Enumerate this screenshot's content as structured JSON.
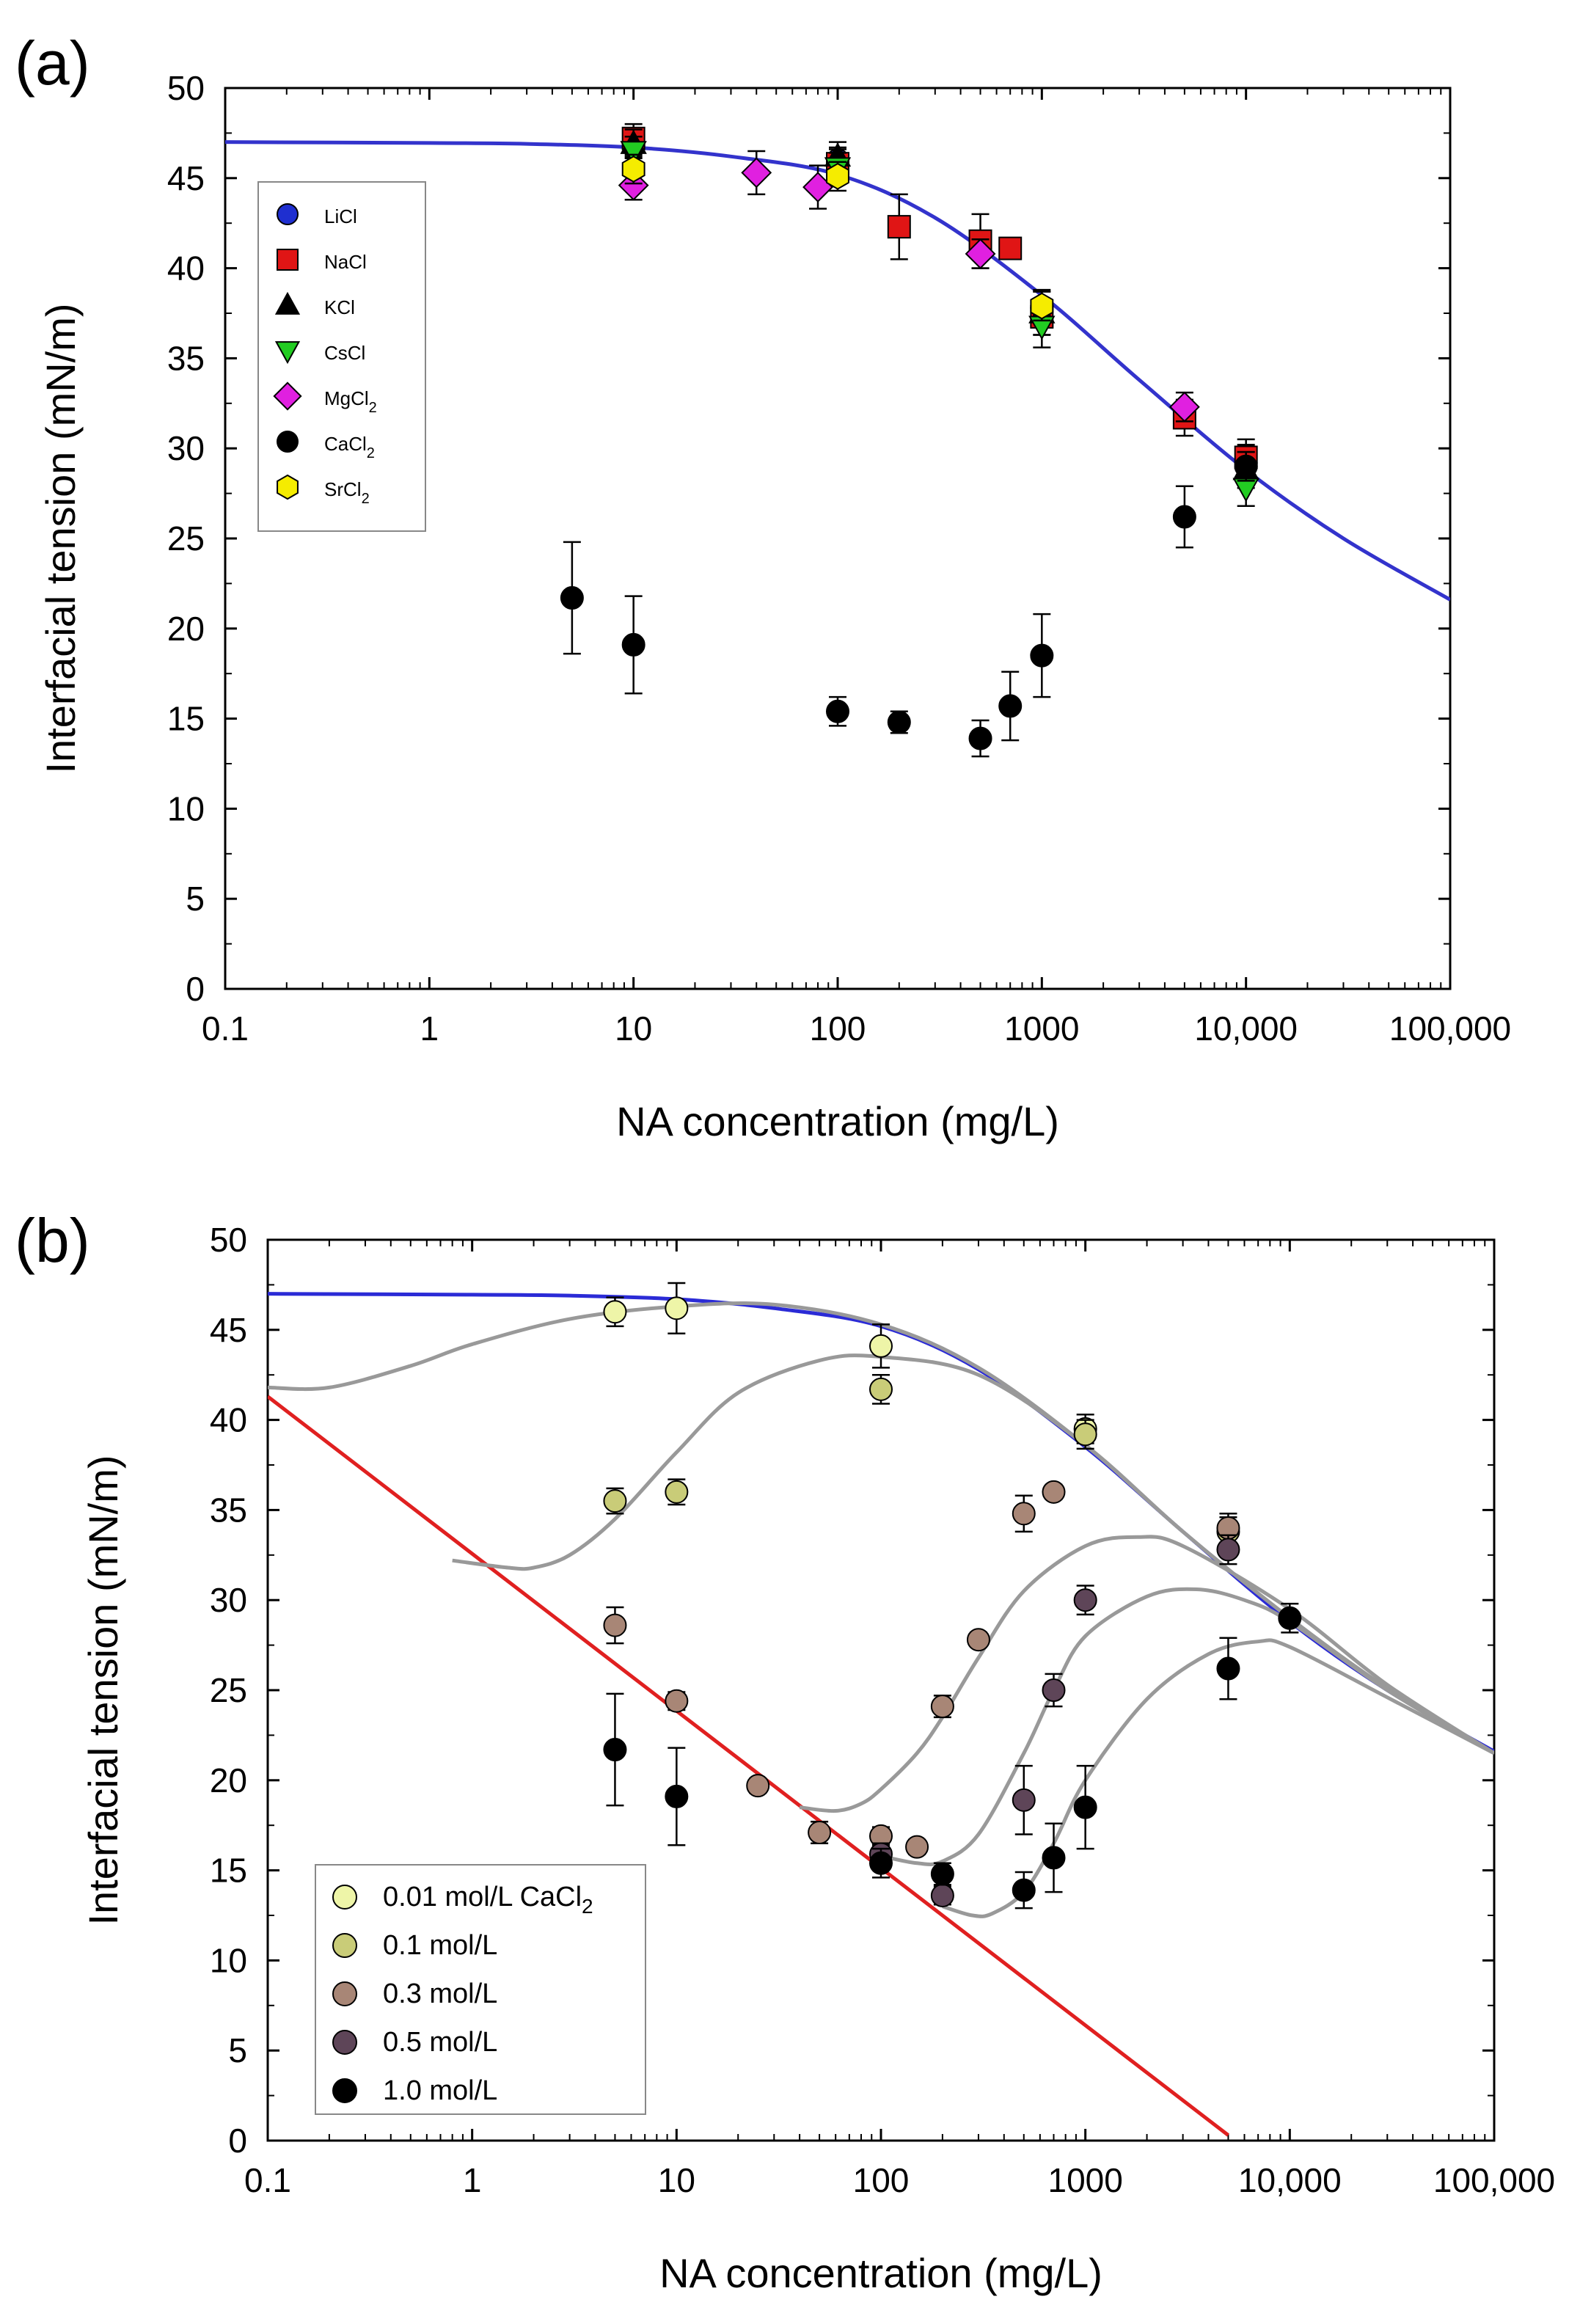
{
  "chart_data": [
    {
      "panel": "(a)",
      "type": "scatter",
      "title": "",
      "xlabel": "NA concentration (mg/L)",
      "ylabel": "Interfacial tension (mN/m)",
      "xscale": "log",
      "xlim": [
        0.1,
        100000
      ],
      "ylim": [
        0,
        50
      ],
      "x_tick_labels": [
        "0.1",
        "1",
        "10",
        "100",
        "1000",
        "10,000",
        "100,000"
      ],
      "x_tick_values": [
        0.1,
        1,
        10,
        100,
        1000,
        10000,
        100000
      ],
      "y_ticks": [
        0,
        5,
        10,
        15,
        20,
        25,
        30,
        35,
        40,
        45,
        50
      ],
      "legend_position": "upper-left",
      "series": [
        {
          "name": "LiCl",
          "name_sub": "",
          "marker": "circle",
          "color": "#1f2fd0",
          "points": [
            [
              10,
              46.8,
              0.6
            ],
            [
              100,
              46.0,
              0.7
            ],
            [
              1000,
              37.8,
              1.0
            ],
            [
              10000,
              29.2,
              1.0
            ]
          ]
        },
        {
          "name": "NaCl",
          "name_sub": "",
          "marker": "square",
          "color": "#e01515",
          "points": [
            [
              10,
              47.2,
              0.8
            ],
            [
              100,
              45.8,
              0.8
            ],
            [
              200,
              42.3,
              1.8
            ],
            [
              500,
              41.5,
              1.5
            ],
            [
              700,
              41.1,
              0.5
            ],
            [
              1000,
              37.3,
              1.0
            ],
            [
              5000,
              31.7,
              1.0
            ],
            [
              10000,
              29.5,
              1.0
            ]
          ]
        },
        {
          "name": "KCl",
          "name_sub": "",
          "marker": "triangle",
          "color": "#000000",
          "points": [
            [
              10,
              46.9,
              0.8
            ],
            [
              100,
              46.2,
              0.8
            ],
            [
              1000,
              37.5,
              1.2
            ],
            [
              10000,
              28.8,
              1.0
            ]
          ]
        },
        {
          "name": "CsCl",
          "name_sub": "",
          "marker": "triangle-down",
          "color": "#22cc22",
          "points": [
            [
              10,
              46.5,
              0.8
            ],
            [
              100,
              45.6,
              0.8
            ],
            [
              1000,
              36.8,
              1.2
            ],
            [
              10000,
              27.8,
              1.0
            ]
          ]
        },
        {
          "name": "MgCl",
          "name_sub": "2",
          "marker": "diamond",
          "color": "#e020e0",
          "points": [
            [
              10,
              44.6,
              0.8
            ],
            [
              40,
              45.3,
              1.2
            ],
            [
              80,
              44.5,
              1.2
            ],
            [
              500,
              40.8,
              0.8
            ],
            [
              5000,
              32.3,
              0.8
            ]
          ]
        },
        {
          "name": "CaCl",
          "name_sub": "2",
          "marker": "circle",
          "color": "#000000",
          "points": [
            [
              5,
              21.7,
              3.1
            ],
            [
              10,
              19.1,
              2.7
            ],
            [
              100,
              15.4,
              0.8
            ],
            [
              200,
              14.8,
              0.6
            ],
            [
              500,
              13.9,
              1.0
            ],
            [
              700,
              15.7,
              1.9
            ],
            [
              1000,
              18.5,
              2.3
            ],
            [
              5000,
              26.2,
              1.7
            ],
            [
              10000,
              29.0,
              0.8
            ]
          ]
        },
        {
          "name": "SrCl",
          "name_sub": "2",
          "marker": "hexagon",
          "color": "#f5ec00",
          "points": [
            [
              10,
              45.5,
              0.8
            ],
            [
              100,
              45.1,
              0.8
            ],
            [
              1000,
              37.9,
              0.8
            ]
          ]
        }
      ],
      "curves": [
        {
          "name": "fit",
          "color": "#3333cc",
          "points": [
            [
              0.1,
              47.0
            ],
            [
              1,
              46.95
            ],
            [
              3,
              46.9
            ],
            [
              10,
              46.7
            ],
            [
              30,
              46.2
            ],
            [
              100,
              45.2
            ],
            [
              300,
              42.8
            ],
            [
              1000,
              38.5
            ],
            [
              3000,
              33.8
            ],
            [
              10000,
              28.8
            ],
            [
              30000,
              25.0
            ],
            [
              100000,
              21.6
            ]
          ]
        }
      ]
    },
    {
      "panel": "(b)",
      "type": "scatter",
      "title": "",
      "xlabel": "NA concentration (mg/L)",
      "ylabel": "Interfacial tension (mN/m)",
      "xscale": "log",
      "xlim": [
        0.1,
        100000
      ],
      "ylim": [
        0,
        50
      ],
      "x_tick_labels": [
        "0.1",
        "1",
        "10",
        "100",
        "1000",
        "10,000",
        "100,000"
      ],
      "x_tick_values": [
        0.1,
        1,
        10,
        100,
        1000,
        10000,
        100000
      ],
      "y_ticks": [
        0,
        5,
        10,
        15,
        20,
        25,
        30,
        35,
        40,
        45,
        50
      ],
      "legend_position": "lower-left",
      "series": [
        {
          "name": "0.01 mol/L CaCl",
          "name_sub": "2",
          "marker": "circle",
          "color": "#eef5a8",
          "points": [
            [
              5,
              46.0,
              0.8
            ],
            [
              10,
              46.2,
              1.4
            ],
            [
              100,
              44.1,
              1.2
            ],
            [
              1000,
              39.5,
              0.8
            ]
          ]
        },
        {
          "name": "0.1 mol/L",
          "name_sub": "",
          "marker": "circle",
          "color": "#c9cc78",
          "points": [
            [
              5,
              35.5,
              0.7
            ],
            [
              10,
              36.0,
              0.7
            ],
            [
              100,
              41.7,
              0.8
            ],
            [
              1000,
              39.2,
              0.8
            ],
            [
              5000,
              33.8,
              0.8
            ]
          ]
        },
        {
          "name": "0.3 mol/L",
          "name_sub": "",
          "marker": "circle",
          "color": "#a88676",
          "points": [
            [
              5,
              28.6,
              1.0
            ],
            [
              10,
              24.4,
              0.5
            ],
            [
              25,
              19.7,
              0.4
            ],
            [
              50,
              17.1,
              0.6
            ],
            [
              100,
              16.9,
              0.5
            ],
            [
              150,
              16.3,
              0.4
            ],
            [
              200,
              24.1,
              0.6
            ],
            [
              300,
              27.8,
              0.4
            ],
            [
              500,
              34.8,
              1.0
            ],
            [
              700,
              36.0,
              0.4
            ],
            [
              5000,
              34.0,
              0.8
            ]
          ]
        },
        {
          "name": "0.5 mol/L",
          "name_sub": "",
          "marker": "circle",
          "color": "#5e4558",
          "points": [
            [
              100,
              15.9,
              0.6
            ],
            [
              200,
              13.6,
              0.5
            ],
            [
              500,
              18.9,
              1.9
            ],
            [
              700,
              25.0,
              0.9
            ],
            [
              1000,
              30.0,
              0.8
            ],
            [
              5000,
              32.8,
              0.8
            ]
          ]
        },
        {
          "name": "1.0 mol/L",
          "name_sub": "",
          "marker": "circle",
          "color": "#000000",
          "points": [
            [
              5,
              21.7,
              3.1
            ],
            [
              10,
              19.1,
              2.7
            ],
            [
              100,
              15.4,
              0.8
            ],
            [
              200,
              14.8,
              0.6
            ],
            [
              500,
              13.9,
              1.0
            ],
            [
              700,
              15.7,
              1.9
            ],
            [
              1000,
              18.5,
              2.3
            ],
            [
              5000,
              26.2,
              1.7
            ],
            [
              10000,
              29.0,
              0.8
            ]
          ]
        }
      ],
      "curves": [
        {
          "name": "blue fit",
          "color": "#2b2bd6",
          "points": [
            [
              0.1,
              47.0
            ],
            [
              1,
              46.95
            ],
            [
              3,
              46.9
            ],
            [
              10,
              46.7
            ],
            [
              30,
              46.2
            ],
            [
              100,
              45.2
            ],
            [
              300,
              42.8
            ],
            [
              1000,
              38.5
            ],
            [
              3000,
              33.8
            ],
            [
              10000,
              28.8
            ],
            [
              30000,
              25.0
            ],
            [
              100000,
              21.6
            ]
          ]
        },
        {
          "name": "red line",
          "color": "#e02020",
          "points": [
            [
              0.1,
              41.3
            ],
            [
              5000,
              0.3
            ]
          ]
        },
        {
          "name": "0.01 mol/L fit",
          "color": "#999999",
          "points": [
            [
              0.1,
              41.8
            ],
            [
              0.2,
              41.8
            ],
            [
              0.5,
              43.0
            ],
            [
              1,
              44.2
            ],
            [
              3,
              45.6
            ],
            [
              10,
              46.3
            ],
            [
              30,
              46.4
            ],
            [
              100,
              45.3
            ],
            [
              300,
              42.9
            ],
            [
              1000,
              38.6
            ],
            [
              3000,
              33.8
            ],
            [
              10000,
              29.0
            ],
            [
              30000,
              25.1
            ],
            [
              100000,
              21.5
            ]
          ]
        },
        {
          "name": "0.1 mol/L fit",
          "color": "#999999",
          "points": [
            [
              0.8,
              32.2
            ],
            [
              1.5,
              31.8
            ],
            [
              2,
              31.8
            ],
            [
              3,
              32.5
            ],
            [
              5,
              34.5
            ],
            [
              10,
              38.2
            ],
            [
              20,
              41.5
            ],
            [
              50,
              43.3
            ],
            [
              100,
              43.5
            ],
            [
              300,
              42.5
            ],
            [
              1000,
              38.6
            ],
            [
              3000,
              33.8
            ],
            [
              10000,
              29.0
            ],
            [
              30000,
              25.1
            ],
            [
              100000,
              21.5
            ]
          ]
        },
        {
          "name": "0.3 mol/L fit",
          "color": "#999999",
          "points": [
            [
              40,
              18.5
            ],
            [
              60,
              18.3
            ],
            [
              80,
              18.7
            ],
            [
              100,
              19.5
            ],
            [
              150,
              21.5
            ],
            [
              200,
              23.5
            ],
            [
              300,
              26.8
            ],
            [
              500,
              30.5
            ],
            [
              1000,
              33.0
            ],
            [
              1800,
              33.5
            ],
            [
              3000,
              33.0
            ],
            [
              10000,
              29.5
            ],
            [
              30000,
              25.3
            ],
            [
              100000,
              21.5
            ]
          ]
        },
        {
          "name": "0.5 mol/L fit",
          "color": "#999999",
          "points": [
            [
              100,
              15.8
            ],
            [
              150,
              15.4
            ],
            [
              200,
              15.5
            ],
            [
              300,
              17.0
            ],
            [
              500,
              21.5
            ],
            [
              700,
              25.0
            ],
            [
              1000,
              28.0
            ],
            [
              2000,
              30.2
            ],
            [
              3500,
              30.6
            ],
            [
              6000,
              30.0
            ],
            [
              10000,
              28.8
            ],
            [
              30000,
              25.0
            ],
            [
              100000,
              21.5
            ]
          ]
        },
        {
          "name": "1.0 mol/L fit",
          "color": "#999999",
          "points": [
            [
              200,
              13.0
            ],
            [
              280,
              12.5
            ],
            [
              350,
              12.6
            ],
            [
              500,
              13.8
            ],
            [
              700,
              16.5
            ],
            [
              1000,
              20.0
            ],
            [
              2000,
              24.5
            ],
            [
              4000,
              27.0
            ],
            [
              7000,
              27.7
            ],
            [
              10000,
              27.4
            ],
            [
              30000,
              24.6
            ],
            [
              100000,
              21.5
            ]
          ]
        }
      ]
    }
  ]
}
